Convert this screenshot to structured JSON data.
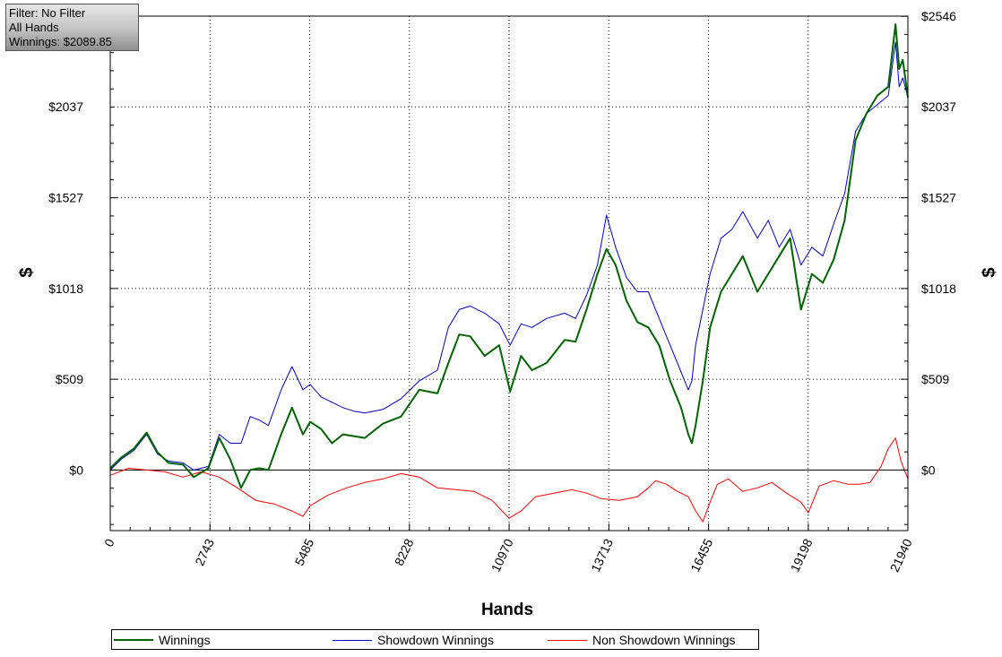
{
  "info": {
    "filter": "Filter: No Filter",
    "hands": "All Hands",
    "winnings": "Winnings: $2089.85"
  },
  "chart_data": {
    "type": "line",
    "xlabel": "Hands",
    "ylabel": "$",
    "x_ticks": [
      0,
      2743,
      5485,
      8228,
      10970,
      13713,
      16455,
      19198,
      21940
    ],
    "y_ticks": [
      0,
      509,
      1018,
      1527,
      2037,
      2546
    ],
    "y_tick_labels": [
      "$0",
      "$509",
      "$1018",
      "$1527",
      "$2037",
      "$2546"
    ],
    "xlim": [
      0,
      21940
    ],
    "ylim": [
      -340,
      2546
    ],
    "grid": true,
    "legend_position": "bottom",
    "series": [
      {
        "name": "Winnings",
        "color": "#006400",
        "x": [
          0,
          300,
          650,
          1000,
          1300,
          1600,
          2000,
          2300,
          2700,
          3000,
          3300,
          3600,
          3850,
          4100,
          4350,
          4700,
          5000,
          5300,
          5500,
          5800,
          6100,
          6400,
          6700,
          7000,
          7500,
          8000,
          8500,
          9000,
          9300,
          9600,
          9900,
          10300,
          10700,
          11000,
          11300,
          11600,
          12000,
          12500,
          12800,
          13100,
          13400,
          13650,
          13900,
          14200,
          14500,
          14800,
          15100,
          15400,
          15700,
          15900,
          16000,
          16100,
          16300,
          16500,
          16800,
          17100,
          17400,
          17800,
          18100,
          18400,
          18700,
          19000,
          19300,
          19600,
          19900,
          20200,
          20500,
          20800,
          21100,
          21400,
          21600,
          21700,
          21800,
          21940
        ],
        "y": [
          10,
          70,
          120,
          210,
          100,
          40,
          30,
          -40,
          10,
          180,
          60,
          -100,
          0,
          10,
          0,
          200,
          350,
          200,
          270,
          230,
          150,
          200,
          190,
          180,
          260,
          300,
          450,
          430,
          600,
          760,
          750,
          640,
          700,
          440,
          640,
          560,
          600,
          730,
          720,
          900,
          1100,
          1240,
          1150,
          950,
          830,
          800,
          700,
          500,
          350,
          200,
          150,
          250,
          500,
          800,
          1000,
          1100,
          1200,
          1000,
          1100,
          1200,
          1300,
          900,
          1100,
          1050,
          1180,
          1400,
          1850,
          2000,
          2100,
          2150,
          2500,
          2250,
          2300,
          2090
        ]
      },
      {
        "name": "Showdown Winnings",
        "color": "#0000cc",
        "x": [
          0,
          300,
          650,
          1000,
          1300,
          1600,
          2000,
          2300,
          2700,
          3000,
          3300,
          3600,
          3850,
          4100,
          4350,
          4700,
          5000,
          5300,
          5500,
          5800,
          6100,
          6400,
          6700,
          7000,
          7500,
          8000,
          8500,
          9000,
          9300,
          9600,
          9900,
          10300,
          10700,
          11000,
          11300,
          11600,
          12000,
          12500,
          12800,
          13100,
          13400,
          13650,
          13900,
          14200,
          14500,
          14800,
          15100,
          15400,
          15700,
          15900,
          16000,
          16100,
          16300,
          16500,
          16800,
          17100,
          17400,
          17800,
          18100,
          18400,
          18700,
          19000,
          19300,
          19600,
          19900,
          20200,
          20500,
          20800,
          21100,
          21400,
          21600,
          21700,
          21800,
          21940
        ],
        "y": [
          0,
          60,
          110,
          200,
          90,
          50,
          40,
          0,
          20,
          200,
          150,
          150,
          300,
          280,
          250,
          450,
          580,
          450,
          480,
          410,
          380,
          350,
          330,
          320,
          340,
          400,
          500,
          560,
          800,
          900,
          920,
          880,
          820,
          700,
          820,
          800,
          850,
          880,
          850,
          980,
          1150,
          1430,
          1250,
          1080,
          1000,
          1000,
          850,
          700,
          550,
          450,
          500,
          700,
          900,
          1100,
          1300,
          1350,
          1450,
          1300,
          1400,
          1250,
          1350,
          1150,
          1250,
          1200,
          1380,
          1550,
          1900,
          2000,
          2050,
          2100,
          2400,
          2150,
          2200,
          2090
        ]
      },
      {
        "name": "Non Showdown Winnings",
        "color": "#ff0000",
        "x": [
          0,
          500,
          1000,
          1500,
          2000,
          2500,
          3000,
          3500,
          4000,
          4500,
          5000,
          5300,
          5500,
          6000,
          6500,
          7000,
          7500,
          8000,
          8500,
          9000,
          9500,
          10000,
          10500,
          10970,
          11300,
          11700,
          12200,
          12700,
          13100,
          13500,
          14000,
          14500,
          14800,
          15000,
          15300,
          15600,
          15900,
          16100,
          16300,
          16500,
          16700,
          17000,
          17400,
          17800,
          18200,
          18600,
          19000,
          19200,
          19500,
          19900,
          20300,
          20600,
          20900,
          21200,
          21400,
          21600,
          21750,
          21940
        ],
        "y": [
          -30,
          10,
          0,
          -10,
          -40,
          -10,
          -40,
          -100,
          -170,
          -190,
          -230,
          -260,
          -200,
          -140,
          -100,
          -70,
          -50,
          -20,
          -40,
          -100,
          -110,
          -120,
          -170,
          -270,
          -230,
          -150,
          -130,
          -110,
          -130,
          -160,
          -170,
          -150,
          -100,
          -60,
          -80,
          -120,
          -150,
          -230,
          -290,
          -180,
          -80,
          -50,
          -120,
          -100,
          -70,
          -130,
          -180,
          -240,
          -90,
          -60,
          -80,
          -80,
          -70,
          20,
          120,
          180,
          50,
          -50
        ]
      }
    ]
  }
}
